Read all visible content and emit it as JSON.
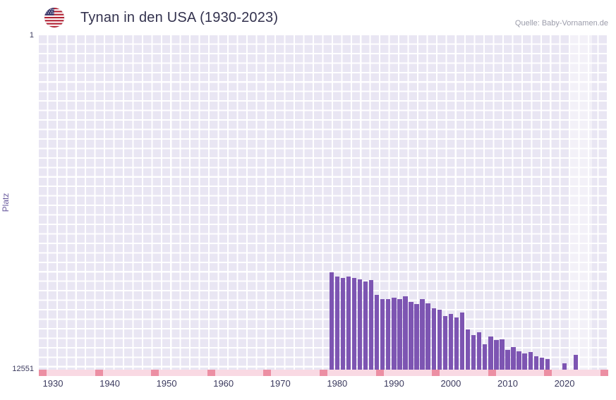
{
  "header": {
    "title": "Tynan in den USA (1930-2023)",
    "source": "Quelle: Baby-Vornamen.de",
    "flag_icon": "us-flag-icon"
  },
  "colors": {
    "bar": "#7d55b2",
    "plot_bg": "#e9e6f3",
    "grid_line": "#ffffff",
    "strip_bg": "#f9d9e3",
    "strip_segment": "#ec8fa3",
    "tick_text": "#3b3a5e",
    "axis_title_text": "#6a5b9e",
    "title_text": "#33324e",
    "source_text": "#9b9caa",
    "highlight_band": "rgba(255,255,255,0.45)",
    "flag_red": "#b22234",
    "flag_blue": "#3c3b6e"
  },
  "chart_data": {
    "type": "bar",
    "title": "Tynan in den USA (1930-2023)",
    "xlabel": "",
    "ylabel": "Platz",
    "y_axis_inverted": true,
    "ylim": [
      1,
      12551
    ],
    "xlim": [
      1927.5,
      2028
    ],
    "grid": true,
    "y_ticks": {
      "top": "1",
      "bottom": "12551"
    },
    "x_ticks": [
      1930,
      1940,
      1950,
      1960,
      1970,
      1980,
      1990,
      2000,
      2010,
      2020
    ],
    "points": [
      {
        "year": 1979,
        "rank": 8900
      },
      {
        "year": 1980,
        "rank": 9050
      },
      {
        "year": 1981,
        "rank": 9100
      },
      {
        "year": 1982,
        "rank": 9050
      },
      {
        "year": 1983,
        "rank": 9100
      },
      {
        "year": 1984,
        "rank": 9150
      },
      {
        "year": 1985,
        "rank": 9250
      },
      {
        "year": 1986,
        "rank": 9200
      },
      {
        "year": 1987,
        "rank": 9750
      },
      {
        "year": 1988,
        "rank": 9900
      },
      {
        "year": 1989,
        "rank": 9900
      },
      {
        "year": 1990,
        "rank": 9850
      },
      {
        "year": 1991,
        "rank": 9900
      },
      {
        "year": 1992,
        "rank": 9800
      },
      {
        "year": 1993,
        "rank": 10000
      },
      {
        "year": 1994,
        "rank": 10100
      },
      {
        "year": 1995,
        "rank": 9900
      },
      {
        "year": 1996,
        "rank": 10050
      },
      {
        "year": 1997,
        "rank": 10250
      },
      {
        "year": 1998,
        "rank": 10300
      },
      {
        "year": 1999,
        "rank": 10550
      },
      {
        "year": 2000,
        "rank": 10450
      },
      {
        "year": 2001,
        "rank": 10600
      },
      {
        "year": 2002,
        "rank": 10400
      },
      {
        "year": 2003,
        "rank": 11050
      },
      {
        "year": 2004,
        "rank": 11250
      },
      {
        "year": 2005,
        "rank": 11150
      },
      {
        "year": 2006,
        "rank": 11600
      },
      {
        "year": 2007,
        "rank": 11300
      },
      {
        "year": 2008,
        "rank": 11450
      },
      {
        "year": 2009,
        "rank": 11400
      },
      {
        "year": 2010,
        "rank": 11800
      },
      {
        "year": 2011,
        "rank": 11700
      },
      {
        "year": 2012,
        "rank": 11850
      },
      {
        "year": 2013,
        "rank": 11950
      },
      {
        "year": 2014,
        "rank": 11900
      },
      {
        "year": 2015,
        "rank": 12050
      },
      {
        "year": 2016,
        "rank": 12100
      },
      {
        "year": 2017,
        "rank": 12150
      },
      {
        "year": 2020,
        "rank": 12300
      },
      {
        "year": 2022,
        "rank": 12000
      }
    ]
  }
}
